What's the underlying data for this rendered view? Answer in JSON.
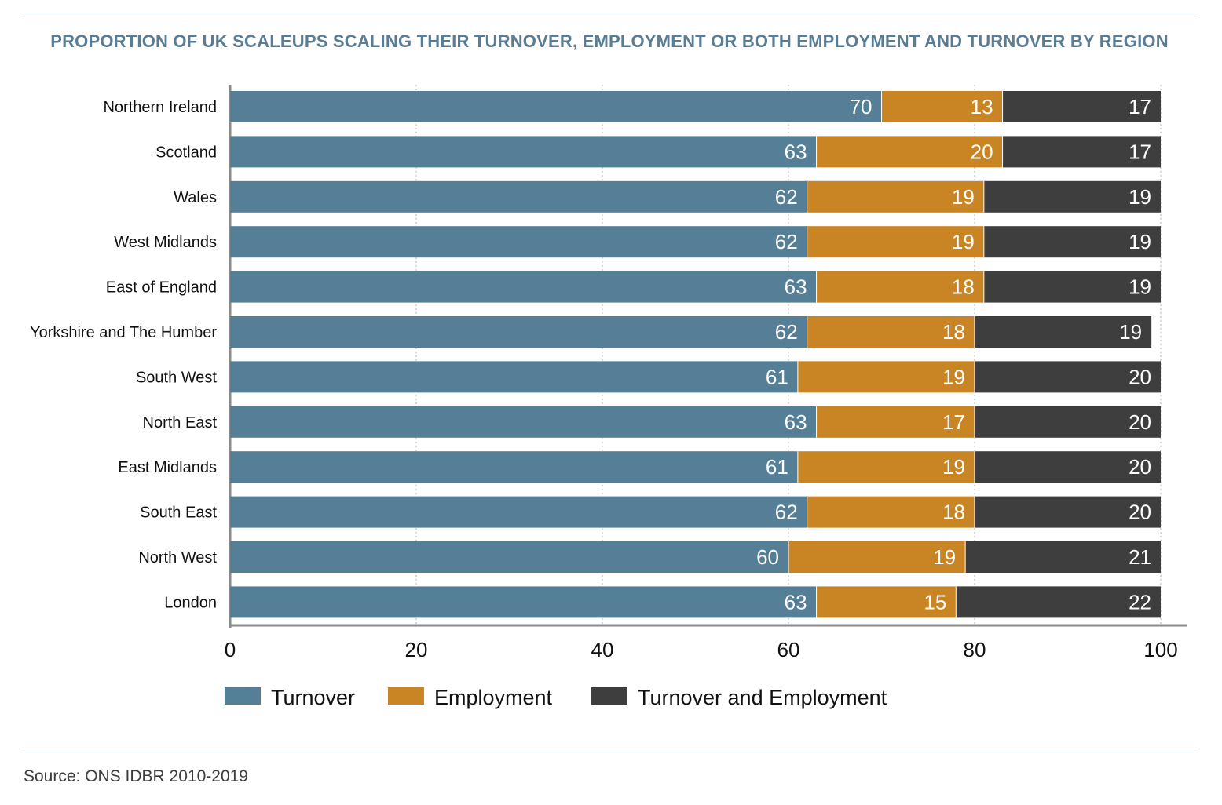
{
  "title": "PROPORTION OF UK SCALEUPS SCALING THEIR TURNOVER, EMPLOYMENT OR BOTH EMPLOYMENT AND TURNOVER BY REGION",
  "source": "Source: ONS IDBR 2010-2019",
  "chart_data": {
    "type": "bar",
    "orientation": "horizontal",
    "stacked": true,
    "title": "PROPORTION OF UK SCALEUPS SCALING THEIR TURNOVER, EMPLOYMENT OR BOTH EMPLOYMENT AND TURNOVER BY REGION",
    "xlabel": "",
    "ylabel": "",
    "xlim": [
      0,
      100
    ],
    "x_ticks": [
      "0",
      "20",
      "40",
      "60",
      "80",
      "100"
    ],
    "grid": "vertical dotted",
    "legend_position": "bottom",
    "categories": [
      "Northern Ireland",
      "Scotland",
      "Wales",
      "West Midlands",
      "East of England",
      "Yorkshire and The Humber",
      "South West",
      "North East",
      "East Midlands",
      "South East",
      "North West",
      "London"
    ],
    "series": [
      {
        "name": "Turnover",
        "color": "#557f96",
        "values": [
          70,
          63,
          62,
          62,
          63,
          62,
          61,
          63,
          61,
          62,
          60,
          63
        ]
      },
      {
        "name": "Employment",
        "color": "#c98523",
        "values": [
          13,
          20,
          19,
          19,
          18,
          18,
          19,
          17,
          19,
          18,
          19,
          15
        ]
      },
      {
        "name": "Turnover and Employment",
        "color": "#3e3e3e",
        "values": [
          17,
          17,
          19,
          19,
          19,
          19,
          20,
          20,
          20,
          20,
          21,
          22
        ]
      }
    ]
  }
}
